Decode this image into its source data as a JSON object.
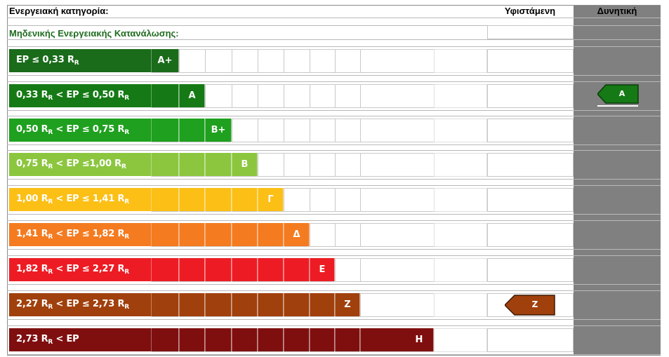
{
  "header": {
    "title": "Ενεργειακή κατηγορία:",
    "subtitle": "Μηδενικής Ενεργειακής Κατανάλωσης:",
    "col_existing": "Υφιστάμενη",
    "col_potential": "Δυνητική"
  },
  "classes": [
    {
      "range": "EP ≤ 0,33 R",
      "label": "A+",
      "color": "#1a6b1a"
    },
    {
      "range": "0,33 R < EP ≤ 0,50 R",
      "label": "A",
      "color": "#157a15"
    },
    {
      "range": "0,50 R < EP ≤ 0,75 R",
      "label": "B+",
      "color": "#1fa01f"
    },
    {
      "range": "0,75 R < EP ≤1,00 R",
      "label": "B",
      "color": "#8cc63f"
    },
    {
      "range": "1,00 R < EP ≤ 1,41 R",
      "label": "Γ",
      "color": "#fbbf16"
    },
    {
      "range": "1,41 R < EP ≤ 1,82 R",
      "label": "Δ",
      "color": "#f47b20"
    },
    {
      "range": "1,82 R < EP ≤ 2,27 R",
      "label": "E",
      "color": "#ed1c24"
    },
    {
      "range": "2,27 R < EP ≤ 2,73 R",
      "label": "Z",
      "color": "#a0400c"
    },
    {
      "range": "2,73 R < EP",
      "label": "H",
      "color": "#7f0f0f"
    }
  ],
  "ranges": {
    "c0": [
      "EP ≤ 0,33 R",
      "R"
    ],
    "c1": [
      "0,33 R",
      "R",
      " < EP ≤ 0,50 R",
      "R"
    ],
    "c2": [
      "0,50 R",
      "R",
      " < EP ≤ 0,75 R",
      "R"
    ],
    "c3": [
      "0,75 R",
      "R",
      " < EP ≤1,00 R",
      "R"
    ],
    "c4": [
      "1,00 R",
      "R",
      " < EP ≤ 1,41 R",
      "R"
    ],
    "c5": [
      "1,41 R",
      "R",
      " < EP ≤ 1,82 R",
      "R"
    ],
    "c6": [
      "1,82 R",
      "R",
      " < EP ≤ 2,27 R",
      "R"
    ],
    "c7": [
      "2,27 R",
      "R",
      " <  EP ≤  2,73 R",
      "R"
    ],
    "c8": [
      "2,73 R",
      "R",
      " < EP"
    ]
  },
  "existing_rating": {
    "label": "Z",
    "color": "#a0400c"
  },
  "potential_rating": {
    "label": "A",
    "color": "#157a15"
  }
}
